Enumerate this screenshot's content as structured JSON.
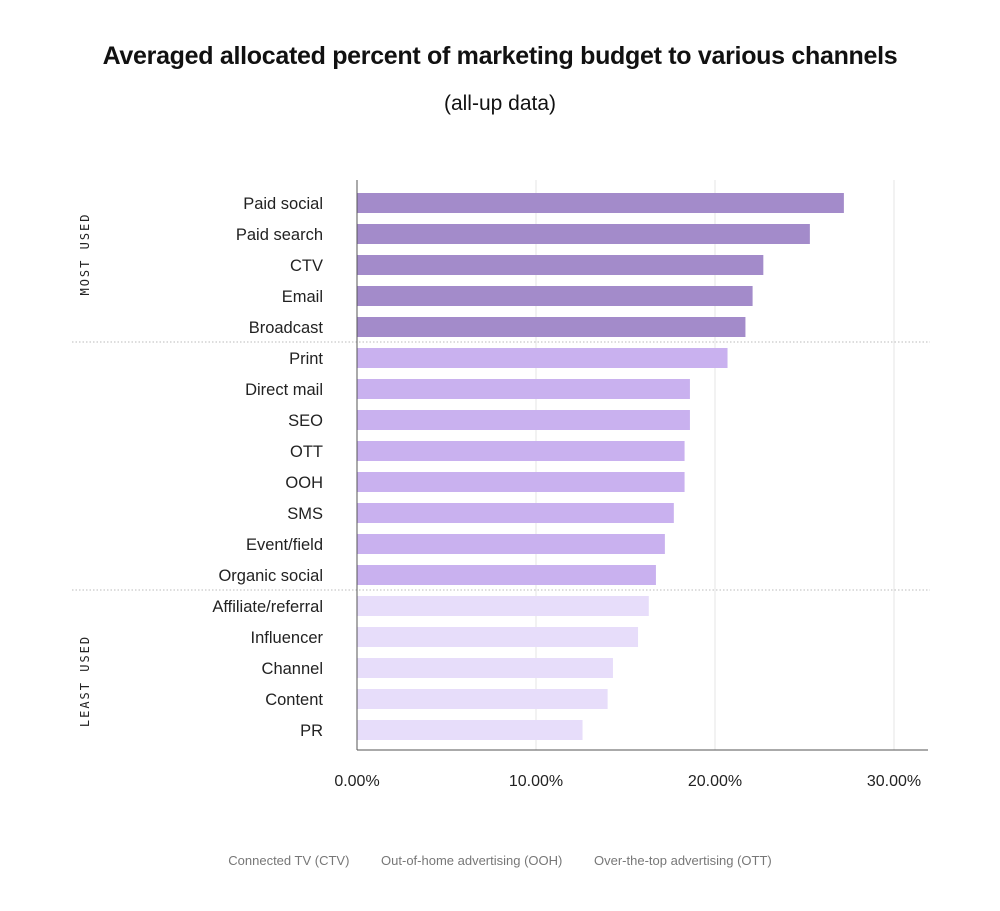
{
  "chart_data": {
    "type": "bar",
    "orientation": "horizontal",
    "title": "Averaged allocated percent of marketing budget to various channels",
    "subtitle": "(all-up data)",
    "categories": [
      "Paid social",
      "Paid search",
      "CTV",
      "Email",
      "Broadcast",
      "Print",
      "Direct mail",
      "SEO",
      "OTT",
      "OOH",
      "SMS",
      "Event/field",
      "Organic social",
      "Affiliate/referral",
      "Influencer",
      "Channel",
      "Content",
      "PR"
    ],
    "values": [
      27.2,
      25.3,
      22.7,
      22.1,
      21.7,
      20.7,
      18.6,
      18.6,
      18.3,
      18.3,
      17.7,
      17.2,
      16.7,
      16.3,
      15.7,
      14.3,
      14.0,
      12.6
    ],
    "tiers": [
      "most",
      "most",
      "most",
      "most",
      "most",
      "mid",
      "mid",
      "mid",
      "mid",
      "mid",
      "mid",
      "mid",
      "mid",
      "least",
      "least",
      "least",
      "least",
      "least"
    ],
    "xlim": [
      0,
      32
    ],
    "xticks": [
      0,
      10,
      20,
      30
    ],
    "xtick_labels": [
      "0.00%",
      "10.00%",
      "20.00%",
      "30.00%"
    ],
    "grid": "vertical",
    "group_labels": {
      "most": "MOST USED",
      "least": "LEAST USED"
    },
    "colors": {
      "most": "#a38bca",
      "mid": "#c9b1ef",
      "least": "#e7ddfa"
    }
  },
  "notes": [
    "Connected TV (CTV)",
    "Out-of-home advertising (OOH)",
    "Over-the-top advertising (OTT)"
  ]
}
